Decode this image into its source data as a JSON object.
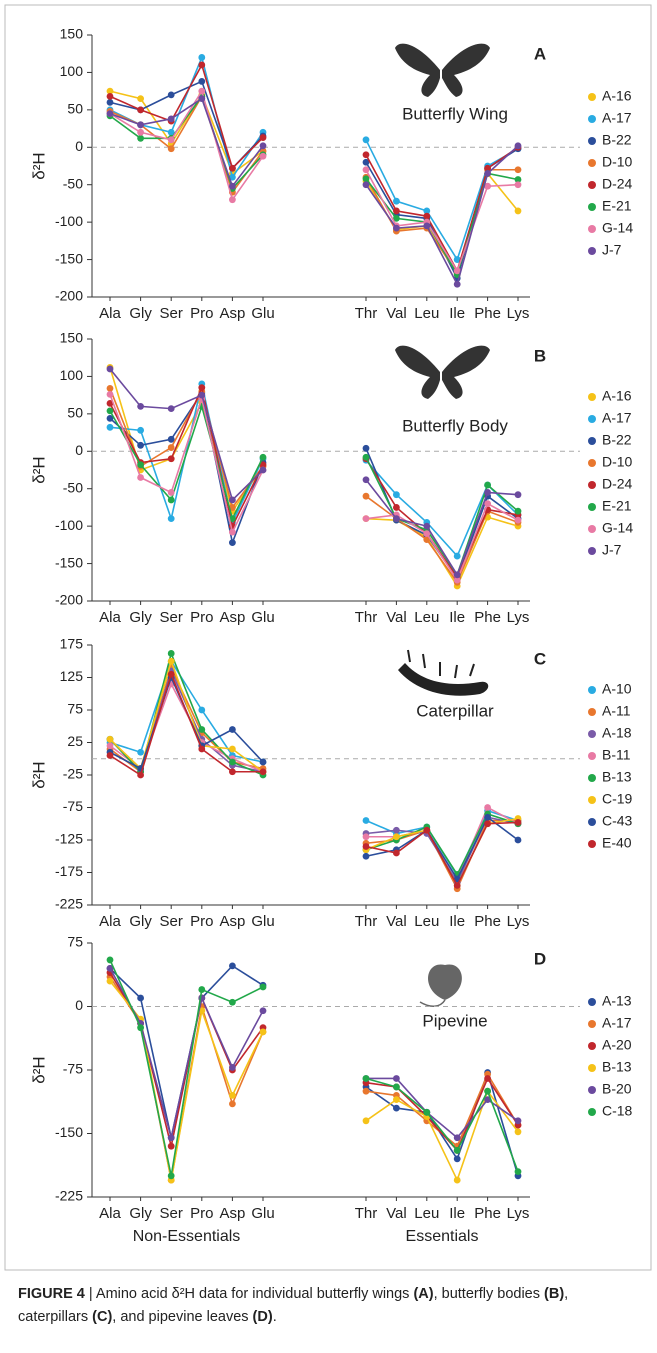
{
  "chart_data": [
    {
      "type": "line",
      "title": "A",
      "subtitle": "Butterfly Wing",
      "y_label": "δ²H",
      "categories": [
        "Ala",
        "Gly",
        "Ser",
        "Pro",
        "Asp",
        "Glu",
        "Thr",
        "Val",
        "Leu",
        "Ile",
        "Phe",
        "Lys"
      ],
      "ylim": [
        -200,
        150
      ],
      "yticks": [
        150,
        100,
        50,
        0,
        -50,
        -100,
        -150,
        -200
      ],
      "hline": 0,
      "series": [
        {
          "name": "A-16",
          "color": "#f5c218",
          "values": [
            75,
            65,
            5,
            70,
            -35,
            -5,
            -45,
            -110,
            -105,
            -170,
            -35,
            -85
          ]
        },
        {
          "name": "A-17",
          "color": "#29abe2",
          "values": [
            50,
            30,
            20,
            120,
            -40,
            20,
            10,
            -72,
            -85,
            -150,
            -25,
            -2
          ]
        },
        {
          "name": "B-22",
          "color": "#2b4e9b",
          "values": [
            60,
            50,
            70,
            88,
            -28,
            15,
            -20,
            -90,
            -95,
            -175,
            -28,
            -2
          ]
        },
        {
          "name": "D-10",
          "color": "#e8772e",
          "values": [
            48,
            30,
            -2,
            68,
            -60,
            -5,
            -40,
            -112,
            -108,
            -168,
            -30,
            -30
          ]
        },
        {
          "name": "D-24",
          "color": "#c1272d",
          "values": [
            68,
            50,
            35,
            110,
            -28,
            13,
            -10,
            -85,
            -92,
            -165,
            -28,
            0
          ]
        },
        {
          "name": "E-21",
          "color": "#22a84a",
          "values": [
            42,
            12,
            12,
            68,
            -55,
            -10,
            -42,
            -95,
            -100,
            -170,
            -35,
            -43
          ]
        },
        {
          "name": "G-14",
          "color": "#e87aa4",
          "values": [
            45,
            20,
            10,
            75,
            -70,
            -12,
            -30,
            -105,
            -100,
            -165,
            -52,
            -50
          ]
        },
        {
          "name": "J-7",
          "color": "#6b4a9e",
          "values": [
            45,
            30,
            38,
            65,
            -52,
            2,
            -50,
            -108,
            -105,
            -183,
            -35,
            2
          ]
        }
      ]
    },
    {
      "type": "line",
      "title": "B",
      "subtitle": "Butterfly Body",
      "y_label": "δ²H",
      "categories": [
        "Ala",
        "Gly",
        "Ser",
        "Pro",
        "Asp",
        "Glu",
        "Thr",
        "Val",
        "Leu",
        "Ile",
        "Phe",
        "Lys"
      ],
      "ylim": [
        -200,
        150
      ],
      "yticks": [
        150,
        100,
        50,
        0,
        -50,
        -100,
        -150,
        -200
      ],
      "hline": 0,
      "series": [
        {
          "name": "A-16",
          "color": "#f5c218",
          "values": [
            112,
            -25,
            -10,
            65,
            -80,
            -20,
            -90,
            -92,
            -115,
            -180,
            -88,
            -100
          ]
        },
        {
          "name": "A-17",
          "color": "#29abe2",
          "values": [
            32,
            28,
            -90,
            90,
            -95,
            -10,
            -12,
            -58,
            -95,
            -140,
            -45,
            -85
          ]
        },
        {
          "name": "B-22",
          "color": "#2b4e9b",
          "values": [
            44,
            8,
            16,
            78,
            -122,
            -15,
            4,
            -92,
            -112,
            -170,
            -60,
            -90
          ]
        },
        {
          "name": "D-10",
          "color": "#e8772e",
          "values": [
            84,
            -20,
            5,
            80,
            -75,
            -20,
            -60,
            -90,
            -118,
            -175,
            -80,
            -95
          ]
        },
        {
          "name": "D-24",
          "color": "#c1272d",
          "values": [
            64,
            -15,
            -10,
            85,
            -100,
            -18,
            -10,
            -75,
            -110,
            -168,
            -78,
            -85
          ]
        },
        {
          "name": "E-21",
          "color": "#22a84a",
          "values": [
            54,
            -18,
            -65,
            60,
            -90,
            -8,
            -8,
            -90,
            -105,
            -165,
            -45,
            -80
          ]
        },
        {
          "name": "G-14",
          "color": "#e87aa4",
          "values": [
            76,
            -35,
            -55,
            70,
            -108,
            -25,
            -90,
            -85,
            -110,
            -172,
            -70,
            -92
          ]
        },
        {
          "name": "J-7",
          "color": "#6b4a9e",
          "values": [
            110,
            60,
            57,
            75,
            -65,
            -25,
            -38,
            -90,
            -100,
            -165,
            -55,
            -58
          ]
        }
      ]
    },
    {
      "type": "line",
      "title": "C",
      "subtitle": "Caterpillar",
      "y_label": "δ²H",
      "categories": [
        "Ala",
        "Gly",
        "Ser",
        "Pro",
        "Asp",
        "Glu",
        "Thr",
        "Val",
        "Leu",
        "Ile",
        "Phe",
        "Lys"
      ],
      "ylim": [
        -225,
        175
      ],
      "yticks": [
        175,
        125,
        75,
        25,
        -25,
        -75,
        -125,
        -175,
        -225
      ],
      "hline": 0,
      "series": [
        {
          "name": "A-10",
          "color": "#29abe2",
          "values": [
            25,
            10,
            150,
            75,
            5,
            -5,
            -95,
            -115,
            -105,
            -180,
            -80,
            -95
          ]
        },
        {
          "name": "A-11",
          "color": "#e8772e",
          "values": [
            15,
            -20,
            140,
            40,
            -5,
            -15,
            -130,
            -125,
            -110,
            -200,
            -95,
            -95
          ]
        },
        {
          "name": "A-18",
          "color": "#7a5ba8",
          "values": [
            30,
            -20,
            135,
            30,
            -10,
            -20,
            -115,
            -110,
            -115,
            -190,
            -90,
            -100
          ]
        },
        {
          "name": "B-11",
          "color": "#e87aa4",
          "values": [
            20,
            -15,
            115,
            25,
            0,
            -20,
            -120,
            -120,
            -110,
            -185,
            -75,
            -100
          ]
        },
        {
          "name": "B-13",
          "color": "#22a84a",
          "values": [
            30,
            -20,
            162,
            45,
            -5,
            -25,
            -140,
            -125,
            -105,
            -178,
            -85,
            -100
          ]
        },
        {
          "name": "C-19",
          "color": "#f5c218",
          "values": [
            30,
            -15,
            150,
            20,
            15,
            -20,
            -140,
            -120,
            -110,
            -195,
            -100,
            -92
          ]
        },
        {
          "name": "C-43",
          "color": "#2b4e9b",
          "values": [
            10,
            -15,
            125,
            20,
            45,
            -5,
            -150,
            -140,
            -110,
            -185,
            -90,
            -125
          ]
        },
        {
          "name": "E-40",
          "color": "#c1272d",
          "values": [
            5,
            -25,
            130,
            15,
            -20,
            -20,
            -135,
            -145,
            -110,
            -195,
            -100,
            -98
          ]
        }
      ]
    },
    {
      "type": "line",
      "title": "D",
      "subtitle": "Pipevine",
      "y_label": "δ²H",
      "categories": [
        "Ala",
        "Gly",
        "Ser",
        "Pro",
        "Asp",
        "Glu",
        "Thr",
        "Val",
        "Leu",
        "Ile",
        "Phe",
        "Lys"
      ],
      "group_labels": [
        "Non-Essentials",
        "Essentials"
      ],
      "ylim": [
        -225,
        75
      ],
      "yticks": [
        75,
        0,
        -75,
        -150,
        -225
      ],
      "hline": 0,
      "series": [
        {
          "name": "A-13",
          "color": "#2b4e9b",
          "values": [
            45,
            10,
            -155,
            10,
            48,
            25,
            -95,
            -120,
            -125,
            -180,
            -78,
            -200
          ]
        },
        {
          "name": "A-17",
          "color": "#e8772e",
          "values": [
            35,
            -20,
            -205,
            0,
            -115,
            -30,
            -100,
            -105,
            -135,
            -165,
            -80,
            -140
          ]
        },
        {
          "name": "A-20",
          "color": "#c1272d",
          "values": [
            40,
            -20,
            -165,
            10,
            -75,
            -25,
            -90,
            -95,
            -130,
            -170,
            -85,
            -140
          ]
        },
        {
          "name": "B-13",
          "color": "#f5c218",
          "values": [
            30,
            -15,
            -205,
            -5,
            -105,
            -30,
            -135,
            -110,
            -130,
            -205,
            -100,
            -148
          ]
        },
        {
          "name": "B-20",
          "color": "#6b4a9e",
          "values": [
            45,
            -20,
            -155,
            10,
            -72,
            -5,
            -85,
            -85,
            -125,
            -155,
            -110,
            -135
          ]
        },
        {
          "name": "C-18",
          "color": "#22a84a",
          "values": [
            55,
            -25,
            -200,
            20,
            5,
            23,
            -85,
            -95,
            -125,
            -170,
            -100,
            -195
          ]
        }
      ]
    }
  ],
  "caption": [
    {
      "text": "FIGURE 4",
      "bold": true
    },
    {
      "text": " | Amino acid δ²H data for individual butterfly wings ",
      "bold": false
    },
    {
      "text": "(A)",
      "bold": true
    },
    {
      "text": ", butterfly bodies ",
      "bold": false
    },
    {
      "text": "(B)",
      "bold": true
    },
    {
      "text": ", caterpillars ",
      "bold": false
    },
    {
      "text": "(C)",
      "bold": true
    },
    {
      "text": ", and pipevine leaves ",
      "bold": false
    },
    {
      "text": "(D)",
      "bold": true
    },
    {
      "text": ".",
      "bold": false
    }
  ]
}
